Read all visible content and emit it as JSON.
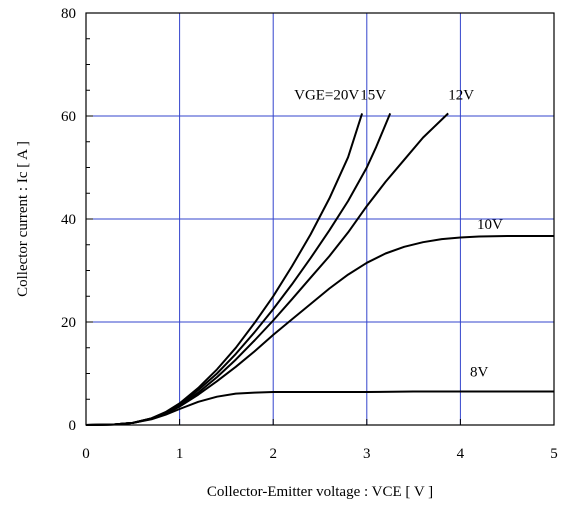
{
  "chart_data": {
    "type": "line",
    "title": "",
    "xlabel": "Collector-Emitter voltage : VCE [ V ]",
    "ylabel": "Collector current : Ic [ A ]",
    "xlim": [
      0,
      5
    ],
    "ylim": [
      0,
      80
    ],
    "x_ticks": [
      0,
      1,
      2,
      3,
      4,
      5
    ],
    "y_ticks": [
      0,
      20,
      40,
      60,
      80
    ],
    "x_tick_labels": [
      "0",
      "1",
      "2",
      "3",
      "4",
      "5"
    ],
    "y_tick_labels": [
      "0",
      "20",
      "40",
      "60",
      "80"
    ],
    "grid": true,
    "grid_color": "#3344cc",
    "line_color": "#000000",
    "series": [
      {
        "name": "VGE=20V",
        "points": [
          [
            0,
            0
          ],
          [
            0.3,
            0.1
          ],
          [
            0.5,
            0.4
          ],
          [
            0.7,
            1.3
          ],
          [
            0.85,
            2.5
          ],
          [
            1.0,
            4.2
          ],
          [
            1.2,
            7.2
          ],
          [
            1.4,
            10.8
          ],
          [
            1.6,
            15.0
          ],
          [
            1.8,
            19.8
          ],
          [
            2.0,
            25.0
          ],
          [
            2.2,
            30.8
          ],
          [
            2.4,
            37.0
          ],
          [
            2.6,
            44.0
          ],
          [
            2.8,
            52.0
          ],
          [
            2.95,
            60.5
          ]
        ]
      },
      {
        "name": "15V",
        "points": [
          [
            0,
            0
          ],
          [
            0.3,
            0.1
          ],
          [
            0.5,
            0.4
          ],
          [
            0.7,
            1.3
          ],
          [
            0.85,
            2.4
          ],
          [
            1.0,
            4.0
          ],
          [
            1.2,
            6.8
          ],
          [
            1.4,
            10.0
          ],
          [
            1.6,
            13.8
          ],
          [
            1.8,
            18.0
          ],
          [
            2.0,
            22.5
          ],
          [
            2.2,
            27.3
          ],
          [
            2.4,
            32.4
          ],
          [
            2.6,
            37.8
          ],
          [
            2.8,
            43.5
          ],
          [
            3.0,
            50.0
          ],
          [
            3.1,
            54.0
          ],
          [
            3.25,
            60.5
          ]
        ]
      },
      {
        "name": "12V",
        "points": [
          [
            0,
            0
          ],
          [
            0.3,
            0.1
          ],
          [
            0.5,
            0.4
          ],
          [
            0.7,
            1.2
          ],
          [
            0.85,
            2.3
          ],
          [
            1.0,
            3.8
          ],
          [
            1.2,
            6.3
          ],
          [
            1.4,
            9.3
          ],
          [
            1.6,
            12.7
          ],
          [
            1.8,
            16.4
          ],
          [
            2.0,
            20.3
          ],
          [
            2.2,
            24.4
          ],
          [
            2.4,
            28.6
          ],
          [
            2.6,
            32.8
          ],
          [
            2.8,
            37.4
          ],
          [
            3.0,
            42.5
          ],
          [
            3.2,
            47.2
          ],
          [
            3.4,
            51.5
          ],
          [
            3.6,
            55.8
          ],
          [
            3.87,
            60.5
          ]
        ]
      },
      {
        "name": "10V",
        "points": [
          [
            0,
            0
          ],
          [
            0.3,
            0.1
          ],
          [
            0.5,
            0.4
          ],
          [
            0.7,
            1.2
          ],
          [
            0.85,
            2.2
          ],
          [
            1.0,
            3.6
          ],
          [
            1.2,
            5.9
          ],
          [
            1.4,
            8.5
          ],
          [
            1.6,
            11.3
          ],
          [
            1.8,
            14.3
          ],
          [
            2.0,
            17.5
          ],
          [
            2.2,
            20.5
          ],
          [
            2.4,
            23.5
          ],
          [
            2.6,
            26.5
          ],
          [
            2.8,
            29.2
          ],
          [
            3.0,
            31.5
          ],
          [
            3.2,
            33.3
          ],
          [
            3.4,
            34.6
          ],
          [
            3.6,
            35.5
          ],
          [
            3.8,
            36.1
          ],
          [
            4.0,
            36.4
          ],
          [
            4.2,
            36.6
          ],
          [
            4.5,
            36.7
          ],
          [
            5.0,
            36.7
          ]
        ]
      },
      {
        "name": "8V",
        "points": [
          [
            0,
            0
          ],
          [
            0.3,
            0.1
          ],
          [
            0.5,
            0.4
          ],
          [
            0.7,
            1.1
          ],
          [
            0.85,
            2.0
          ],
          [
            1.0,
            3.1
          ],
          [
            1.2,
            4.5
          ],
          [
            1.4,
            5.5
          ],
          [
            1.6,
            6.1
          ],
          [
            1.8,
            6.3
          ],
          [
            2.0,
            6.4
          ],
          [
            2.5,
            6.4
          ],
          [
            3.0,
            6.4
          ],
          [
            3.5,
            6.5
          ],
          [
            4.0,
            6.5
          ],
          [
            4.5,
            6.5
          ],
          [
            5.0,
            6.5
          ]
        ]
      }
    ],
    "curve_labels": [
      {
        "text": "VGE=20V",
        "series": "VGE=20V"
      },
      {
        "text": "15V",
        "series": "15V"
      },
      {
        "text": "12V",
        "series": "12V"
      },
      {
        "text": "10V",
        "series": "10V"
      },
      {
        "text": "8V",
        "series": "8V"
      }
    ]
  }
}
